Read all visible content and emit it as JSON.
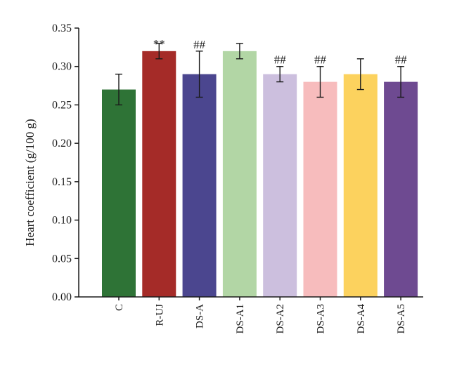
{
  "chart_data": {
    "type": "bar",
    "categories": [
      "C",
      "R-UJ",
      "DS-A",
      "DS-A1",
      "DS-A2",
      "DS-A3",
      "DS-A4",
      "DS-A5"
    ],
    "values": [
      0.27,
      0.32,
      0.29,
      0.32,
      0.29,
      0.28,
      0.29,
      0.28
    ],
    "error_low": [
      0.25,
      0.31,
      0.26,
      0.31,
      0.28,
      0.26,
      0.27,
      0.26
    ],
    "error_high": [
      0.29,
      0.33,
      0.32,
      0.33,
      0.3,
      0.3,
      0.31,
      0.3
    ],
    "annotations": [
      "",
      "**",
      "##",
      "",
      "##",
      "##",
      "",
      "##"
    ],
    "colors": [
      "#2e7336",
      "#a52b28",
      "#4b468f",
      "#b2d6a5",
      "#ccbfde",
      "#f7bcbd",
      "#fcd25e",
      "#6e4a91"
    ],
    "xlabel": "",
    "ylabel": "Heart coefficient (g/100 g)",
    "ylim": [
      0.0,
      0.35
    ],
    "yticks": [
      "0.00",
      "0.05",
      "0.10",
      "0.15",
      "0.20",
      "0.25",
      "0.30",
      "0.35"
    ],
    "grid": false,
    "legend": "none"
  }
}
